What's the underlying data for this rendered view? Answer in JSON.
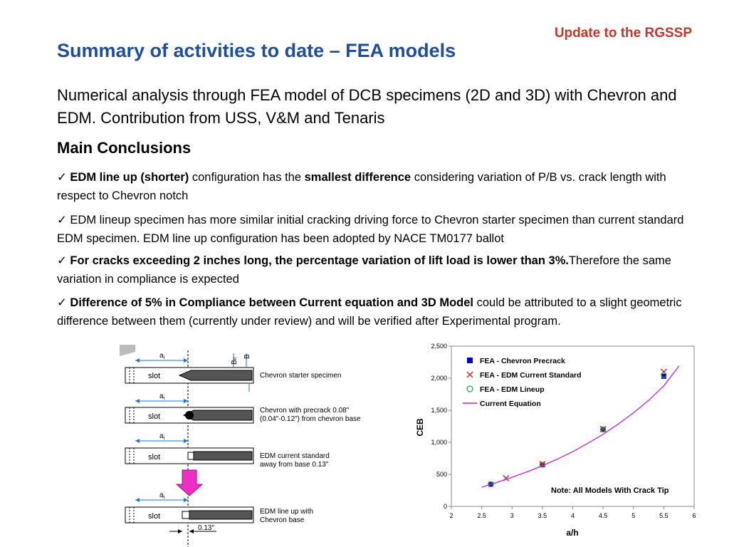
{
  "header": {
    "tag": "Update to the RGSSP",
    "title": "Summary of activities to date – FEA models"
  },
  "intro": "Numerical analysis through FEA model of DCB specimens (2D and 3D) with Chevron and EDM. Contribution from USS, V&M and Tenaris",
  "main_heading": "Main Conclusions",
  "bullets": [
    {
      "check": "✓",
      "bold1": "EDM line up (shorter)",
      "text1": " configuration has the ",
      "bold2": "smallest difference",
      "text2": " considering variation of P/B vs. crack length with respect to Chevron notch"
    },
    {
      "check": "✓",
      "text": "EDM lineup specimen has more similar initial cracking driving force to Chevron starter specimen than current standard EDM specimen. EDM line up configuration has been adopted by NACE TM0177 ballot"
    },
    {
      "check": "✓",
      "bold": "For cracks exceeding 2 inches long, the percentage variation of lift load is lower than 3%.",
      "text": "Therefore the same variation in compliance is expected"
    },
    {
      "check": "✓",
      "bold": "Difference of 5% in Compliance between Current equation and 3D Model",
      "text": " could be attributed to a slight geometric difference between them (currently under review) and will be verified after Experimental program."
    }
  ],
  "diagram": {
    "slot_label": "slot",
    "ai_label": "a",
    "ai_sub": "i",
    "bn_label": "B",
    "bn_sub": "n",
    "b_label": "B",
    "captions": [
      [
        "Chevron starter specimen"
      ],
      [
        "Chevron with precrack 0.08\"",
        "(0.04\"-0.12\") from chevron base"
      ],
      [
        "EDM current standard",
        "away from base 0.13\""
      ],
      [
        "EDM line up with",
        "Chevron base"
      ]
    ],
    "dim_label": "0.13\""
  },
  "chart_data": {
    "type": "scatter",
    "xlabel": "a/h",
    "ylabel": "CEB",
    "xlim": [
      2,
      6
    ],
    "ylim": [
      0,
      2500
    ],
    "xticks": [
      "2",
      "2.5",
      "3",
      "3.5",
      "4",
      "4.5",
      "5",
      "5.5",
      "6"
    ],
    "yticks": [
      "0",
      "500",
      "1,000",
      "1,500",
      "2,000",
      "2,500"
    ],
    "legend_position": "top-left",
    "note": "Note:  All Models With Crack Tip",
    "series": [
      {
        "name": "FEA - Chevron Precrack",
        "marker": "square",
        "color": "#0000cc",
        "x": [
          2.65,
          3.5,
          4.5,
          5.5
        ],
        "y": [
          345,
          650,
          1200,
          2030
        ]
      },
      {
        "name": "FEA - EDM Current Standard",
        "marker": "x",
        "color": "#d9252b",
        "x": [
          2.9,
          3.5,
          4.5,
          5.5
        ],
        "y": [
          440,
          660,
          1210,
          2100
        ]
      },
      {
        "name": "FEA - EDM Lineup",
        "marker": "circle",
        "color": "#22a84a",
        "x": [
          2.65,
          3.5,
          4.5,
          5.5
        ],
        "y": [
          345,
          650,
          1200,
          2050
        ]
      },
      {
        "name": "Current Equation",
        "marker": "line",
        "color": "#cc22cc",
        "x": [
          2.5,
          2.75,
          3.0,
          3.25,
          3.5,
          3.75,
          4.0,
          4.25,
          4.5,
          4.75,
          5.0,
          5.25,
          5.5,
          5.75
        ],
        "y": [
          300,
          375,
          455,
          540,
          635,
          740,
          855,
          985,
          1125,
          1285,
          1460,
          1655,
          1880,
          2190
        ]
      }
    ]
  }
}
